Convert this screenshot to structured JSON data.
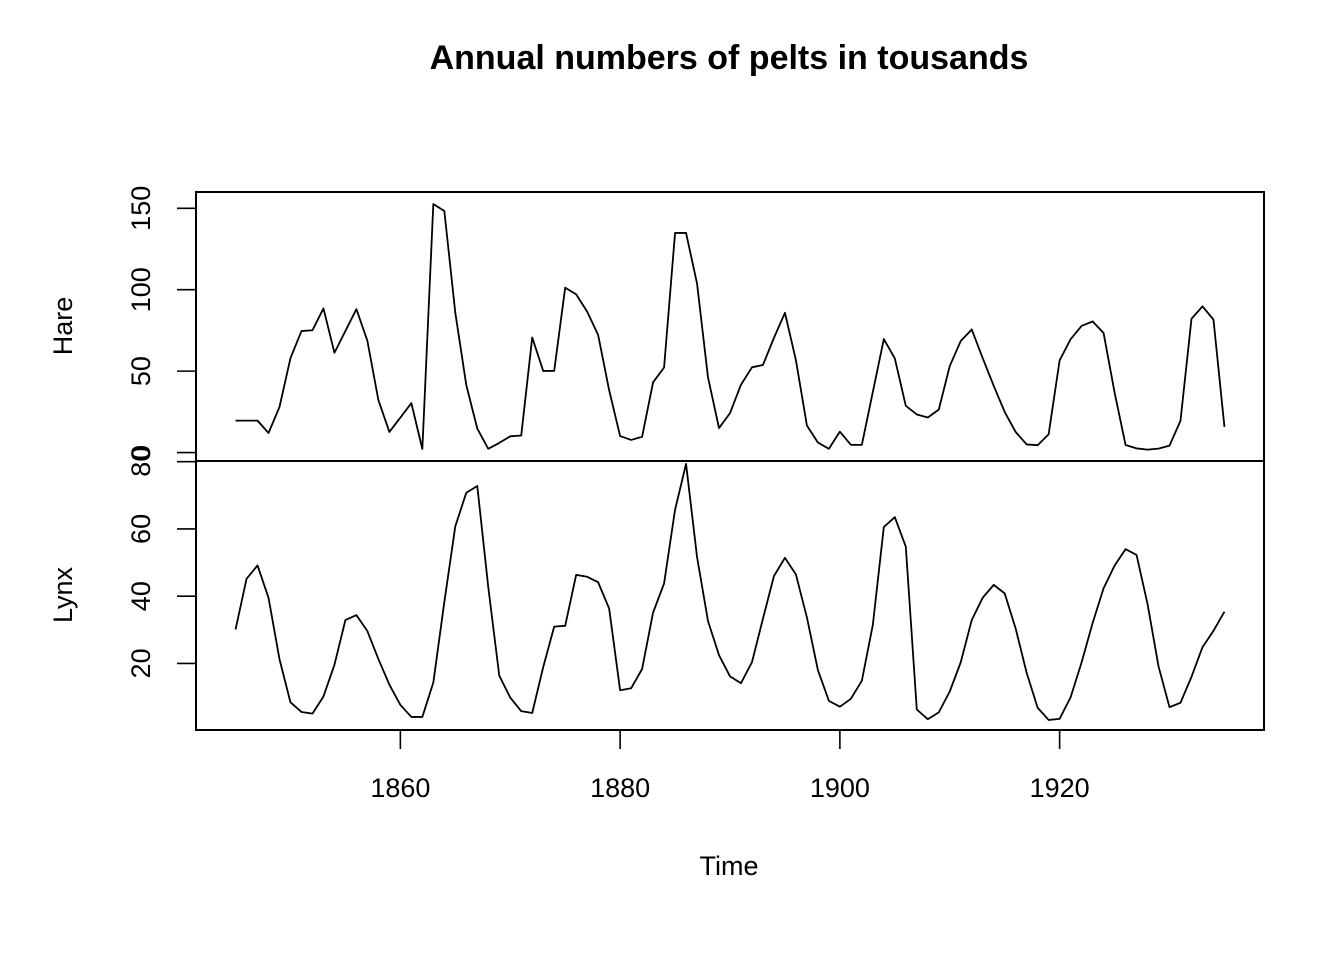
{
  "chart_data": {
    "type": "line",
    "title": "Annual numbers of pelts in tousands",
    "xlabel": "Time",
    "x_start": 1845,
    "x_end": 1935,
    "xlim": [
      1841.4,
      1938.6
    ],
    "x_ticks": [
      1860,
      1880,
      1900,
      1920
    ],
    "x_tick_labels": [
      "1860",
      "1880",
      "1900",
      "1920"
    ],
    "grid": false,
    "legend": "none",
    "panels": [
      {
        "name": "Hare",
        "ylabel": "Hare",
        "ylim": [
          -5.2,
          160
        ],
        "y_ticks": [
          0,
          50,
          100,
          150
        ],
        "y_tick_labels": [
          "0",
          "50",
          "100",
          "150"
        ],
        "values": [
          19.58,
          19.6,
          19.61,
          11.99,
          28.04,
          58.0,
          74.6,
          75.09,
          88.48,
          61.28,
          74.67,
          88.06,
          68.51,
          32.19,
          12.64,
          21.49,
          30.35,
          2.18,
          152.65,
          148.36,
          85.81,
          41.41,
          14.75,
          2.28,
          5.91,
          9.95,
          10.44,
          70.64,
          50.12,
          50.13,
          101.25,
          97.12,
          86.51,
          72.17,
          38.32,
          10.11,
          7.74,
          9.67,
          43.12,
          52.21,
          134.85,
          134.86,
          103.79,
          46.1,
          15.03,
          24.2,
          41.65,
          52.34,
          53.78,
          70.4,
          85.81,
          56.69,
          16.59,
          6.16,
          2.3,
          12.82,
          4.72,
          4.73,
          37.22,
          69.72,
          57.78,
          28.68,
          23.37,
          21.54,
          26.34,
          53.1,
          68.48,
          75.58,
          57.92,
          40.97,
          24.95,
          12.59,
          4.97,
          4.5,
          11.21,
          56.6,
          69.63,
          77.74,
          80.53,
          73.38,
          36.93,
          4.64,
          2.54,
          1.8,
          2.39,
          4.23,
          19.52,
          82.11,
          89.76,
          81.66,
          15.76
        ]
      },
      {
        "name": "Lynx",
        "ylabel": "Lynx",
        "ylim": [
          0.2,
          80.2
        ],
        "y_ticks": [
          20,
          40,
          60,
          80
        ],
        "y_tick_labels": [
          "20",
          "40",
          "60",
          "80"
        ],
        "values": [
          30.09,
          45.15,
          49.15,
          39.52,
          21.23,
          8.42,
          5.56,
          5.08,
          10.17,
          19.6,
          32.91,
          34.38,
          29.59,
          21.3,
          13.69,
          7.65,
          4.08,
          4.09,
          14.33,
          38.22,
          60.78,
          70.77,
          72.77,
          42.68,
          16.39,
          9.83,
          5.8,
          5.26,
          18.91,
          30.95,
          31.18,
          46.34,
          45.77,
          44.15,
          36.33,
          12.03,
          12.6,
          18.34,
          35.14,
          43.77,
          65.69,
          79.35,
          51.65,
          32.59,
          22.45,
          16.16,
          14.12,
          20.38,
          33.33,
          46.0,
          51.41,
          46.43,
          33.68,
          18.01,
          8.86,
          7.13,
          9.47,
          14.86,
          31.47,
          60.57,
          63.51,
          54.7,
          6.3,
          3.41,
          5.44,
          11.65,
          20.35,
          32.88,
          39.55,
          43.36,
          40.83,
          30.36,
          17.18,
          6.82,
          3.19,
          3.52,
          9.94,
          20.3,
          31.99,
          42.36,
          49.08,
          53.99,
          52.25,
          37.7,
          19.14,
          6.98,
          8.31,
          16.01,
          24.82,
          29.7,
          35.4
        ]
      }
    ]
  }
}
